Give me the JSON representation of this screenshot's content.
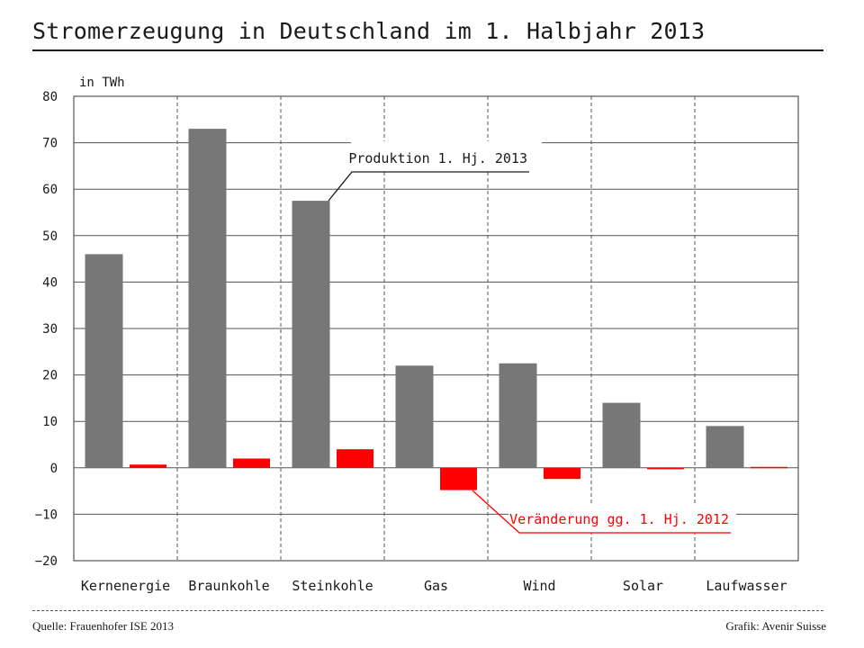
{
  "title": "Stromerzeugung in Deutschland im 1. Halbjahr 2013",
  "source": "Quelle: Frauenhofer ISE 2013",
  "credit": "Grafik: Avenir Suisse",
  "chart_data": {
    "type": "bar",
    "unit_label": "in TWh",
    "categories": [
      "Kernenergie",
      "Braunkohle",
      "Steinkohle",
      "Gas",
      "Wind",
      "Solar",
      "Laufwasser"
    ],
    "series": [
      {
        "name": "Produktion 1. Hj. 2013",
        "color": "#777777",
        "values": [
          46,
          73,
          57.5,
          22,
          22.5,
          14,
          9
        ]
      },
      {
        "name": "Veränderung gg. 1. Hj. 2012",
        "color": "#ff0000",
        "values": [
          0.7,
          2,
          4,
          -4.8,
          -2.4,
          -0.3,
          0.2
        ]
      }
    ],
    "ylim": [
      -20,
      80
    ],
    "yticks": [
      -20,
      -10,
      0,
      10,
      20,
      30,
      40,
      50,
      60,
      70,
      80
    ],
    "grid": true
  }
}
